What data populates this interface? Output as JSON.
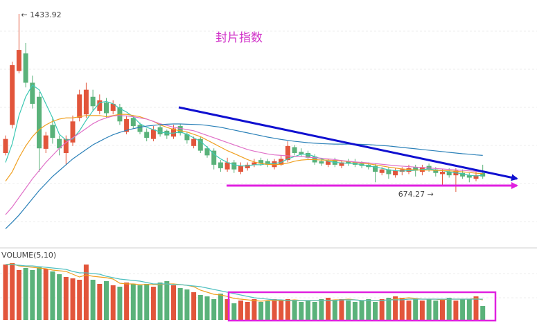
{
  "chart_data": {
    "type": "candlestick",
    "title": "封片指数",
    "up_color": "#e2553b",
    "down_color": "#5ab27a",
    "ylim": [
      444,
      1493
    ],
    "open": [
      840,
      960,
      1190,
      1265,
      1140,
      1080,
      858,
      960,
      900,
      840,
      885,
      990,
      1005,
      1080,
      1020,
      1055,
      1020,
      1035,
      930,
      990,
      960,
      930,
      900,
      950,
      935,
      910,
      955,
      920,
      870,
      900,
      860,
      850,
      800,
      770,
      800,
      760,
      775,
      790,
      810,
      805,
      780,
      790,
      810,
      865,
      845,
      840,
      825,
      805,
      790,
      810,
      785,
      805,
      800,
      795,
      790,
      785,
      755,
      770,
      745,
      760,
      760,
      780,
      760,
      785,
      770,
      750,
      760,
      745,
      755,
      745,
      730,
      755
    ],
    "high": [
      915,
      1230,
      1433.92,
      1310,
      1170,
      1100,
      930,
      990,
      915,
      915,
      1000,
      1110,
      1140,
      1110,
      1090,
      1075,
      1065,
      1050,
      1000,
      1000,
      970,
      945,
      955,
      965,
      940,
      960,
      965,
      930,
      910,
      910,
      870,
      860,
      810,
      820,
      810,
      800,
      800,
      815,
      820,
      815,
      815,
      830,
      890,
      875,
      860,
      850,
      835,
      815,
      815,
      820,
      810,
      815,
      815,
      805,
      800,
      795,
      780,
      780,
      775,
      780,
      790,
      790,
      790,
      795,
      780,
      770,
      775,
      775,
      770,
      755,
      760,
      790
    ],
    "low": [
      830,
      945,
      1180,
      1120,
      1030,
      760,
      840,
      880,
      830,
      790,
      870,
      975,
      990,
      1020,
      1005,
      990,
      1005,
      960,
      920,
      945,
      920,
      890,
      890,
      910,
      900,
      900,
      915,
      880,
      860,
      840,
      820,
      770,
      760,
      760,
      755,
      750,
      765,
      780,
      785,
      780,
      770,
      785,
      800,
      830,
      825,
      810,
      790,
      785,
      780,
      780,
      775,
      785,
      780,
      775,
      770,
      715,
      745,
      730,
      735,
      745,
      750,
      740,
      745,
      760,
      740,
      700,
      735,
      674.27,
      730,
      715,
      720,
      730
    ],
    "close": [
      900,
      1215,
      1280,
      1140,
      1050,
      860,
      915,
      905,
      860,
      900,
      975,
      1090,
      1110,
      1040,
      1065,
      1010,
      1050,
      975,
      985,
      955,
      930,
      905,
      940,
      920,
      915,
      945,
      925,
      895,
      900,
      850,
      830,
      790,
      775,
      800,
      770,
      785,
      790,
      800,
      795,
      790,
      805,
      815,
      870,
      840,
      835,
      820,
      800,
      795,
      805,
      790,
      800,
      795,
      790,
      785,
      780,
      760,
      770,
      750,
      765,
      770,
      775,
      765,
      780,
      770,
      755,
      760,
      745,
      765,
      740,
      735,
      745,
      740
    ],
    "ma": [
      {
        "color": "#3cc8b4",
        "values": [
          800,
          880,
          1000,
          1080,
          1130,
          1110,
          1050,
          990,
          920,
          895,
          900,
          935,
          980,
          1020,
          1055,
          1060,
          1050,
          1030,
          1015,
          995,
          965,
          950,
          940,
          930,
          925,
          925,
          930,
          920,
          905,
          890,
          865,
          835,
          815,
          800,
          790,
          785,
          785,
          790,
          790,
          795,
          795,
          800,
          815,
          825,
          835,
          835,
          825,
          815,
          805,
          800,
          798,
          796,
          795,
          790,
          785,
          780,
          775,
          768,
          765,
          763,
          765,
          766,
          770,
          772,
          768,
          765,
          760,
          755,
          752,
          745,
          742,
          745
        ]
      },
      {
        "color": "#f0a020",
        "values": [
          720,
          760,
          820,
          870,
          910,
          940,
          960,
          975,
          985,
          990,
          990,
          995,
          1000,
          1000,
          1000,
          995,
          1000,
          1005,
          1005,
          1000,
          995,
          985,
          975,
          960,
          950,
          940,
          935,
          930,
          920,
          910,
          895,
          880,
          865,
          850,
          838,
          825,
          812,
          802,
          795,
          792,
          790,
          792,
          797,
          805,
          810,
          812,
          812,
          810,
          810,
          808,
          806,
          804,
          800,
          797,
          794,
          790,
          785,
          780,
          776,
          772,
          770,
          768,
          767,
          767,
          766,
          765,
          764,
          762,
          760,
          757,
          754,
          752
        ]
      },
      {
        "color": "#e070c8",
        "values": [
          577,
          610,
          650,
          690,
          730,
          765,
          800,
          830,
          860,
          885,
          905,
          925,
          945,
          965,
          980,
          990,
          998,
          1000,
          998,
          995,
          990,
          985,
          975,
          965,
          958,
          950,
          945,
          940,
          935,
          925,
          915,
          905,
          895,
          885,
          875,
          865,
          855,
          848,
          842,
          836,
          832,
          830,
          828,
          826,
          825,
          822,
          820,
          818,
          815,
          812,
          808,
          805,
          802,
          800,
          798,
          795,
          792,
          789,
          786,
          784,
          782,
          780,
          778,
          776,
          774,
          772,
          770,
          768,
          766,
          764,
          762,
          760
        ]
      },
      {
        "color": "#2a80b8",
        "values": [
          517,
          545,
          575,
          610,
          645,
          680,
          710,
          740,
          765,
          790,
          815,
          835,
          855,
          875,
          890,
          905,
          918,
          928,
          937,
          944,
          950,
          955,
          958,
          961,
          963,
          964,
          964,
          963,
          962,
          961,
          958,
          954,
          950,
          944,
          938,
          932,
          926,
          920,
          914,
          908,
          903,
          898,
          894,
          890,
          887,
          884,
          882,
          880,
          879,
          878,
          878,
          878,
          878,
          877,
          876,
          874,
          872,
          870,
          867,
          864,
          861,
          858,
          855,
          852,
          849,
          846,
          843,
          840,
          837,
          835,
          832,
          830
        ]
      }
    ],
    "annotations": [
      {
        "value": 1433.92,
        "label": "← 1433.92"
      },
      {
        "value": 674.27,
        "label": "674.27 →"
      }
    ],
    "volume": {
      "label": "VOLUME(5,10)",
      "ylim": [
        0,
        90
      ],
      "values": [
        80,
        82,
        72,
        75,
        72,
        76,
        74,
        70,
        66,
        62,
        60,
        58,
        80,
        58,
        52,
        56,
        50,
        48,
        54,
        52,
        50,
        52,
        48,
        54,
        56,
        50,
        46,
        44,
        40,
        36,
        34,
        30,
        38,
        30,
        24,
        28,
        26,
        30,
        26,
        28,
        30,
        28,
        30,
        28,
        26,
        28,
        26,
        30,
        32,
        28,
        30,
        28,
        26,
        28,
        30,
        26,
        30,
        32,
        34,
        32,
        28,
        30,
        28,
        30,
        28,
        30,
        32,
        28,
        30,
        30,
        34,
        20
      ],
      "ma": [
        {
          "color": "#f0a020",
          "values": [
            80,
            81,
            78,
            77,
            76,
            75,
            74,
            72,
            71,
            70,
            66,
            62,
            65,
            63,
            62,
            61,
            59,
            53,
            52,
            52,
            51,
            51,
            51,
            51,
            52,
            52,
            51,
            50,
            48,
            43,
            40,
            37,
            36,
            34,
            31,
            30,
            29,
            28,
            27,
            28,
            28,
            28,
            28,
            29,
            28,
            28,
            28,
            28,
            28,
            29,
            29,
            30,
            29,
            28,
            28,
            28,
            28,
            29,
            30,
            31,
            32,
            31,
            30,
            30,
            30,
            29,
            30,
            30,
            30,
            30,
            31,
            29
          ]
        },
        {
          "color": "#50c0c0",
          "values": [
            80,
            80,
            79,
            78,
            78,
            77,
            76,
            75,
            74,
            73,
            70,
            68,
            68,
            67,
            66,
            63,
            61,
            59,
            58,
            57,
            56,
            54,
            52,
            52,
            52,
            51,
            51,
            50,
            49,
            48,
            46,
            44,
            42,
            40,
            38,
            36,
            34,
            32,
            31,
            30,
            29,
            29,
            28,
            28,
            28,
            28,
            28,
            28,
            28,
            28,
            29,
            29,
            29,
            28,
            28,
            28,
            28,
            29,
            29,
            29,
            30,
            30,
            30,
            30,
            30,
            30,
            30,
            30,
            30,
            30,
            30,
            30
          ]
        }
      ]
    }
  }
}
